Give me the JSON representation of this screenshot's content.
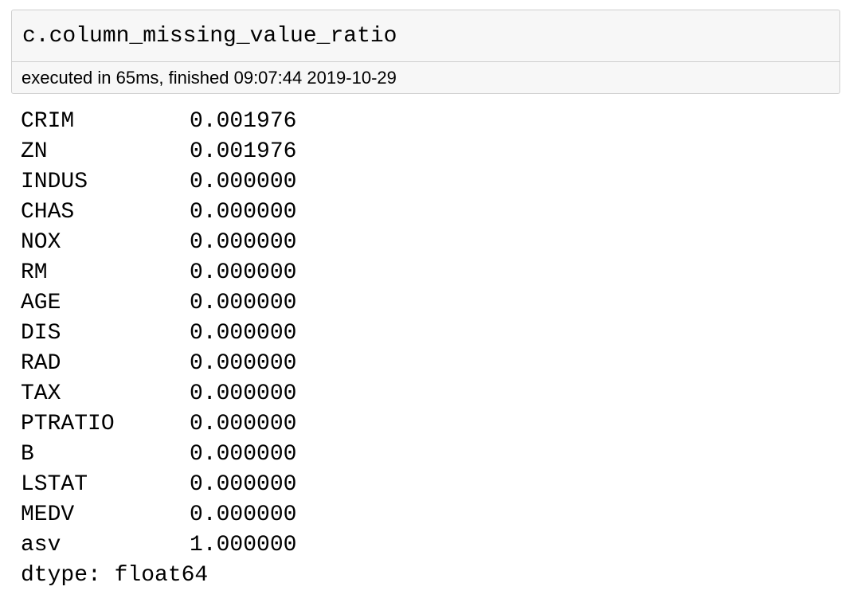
{
  "cell": {
    "code": "c.column_missing_value_ratio",
    "execution_info": "executed in 65ms, finished 09:07:44 2019-10-29"
  },
  "output": {
    "rows": [
      {
        "name": "CRIM",
        "value": "0.001976"
      },
      {
        "name": "ZN",
        "value": "0.001976"
      },
      {
        "name": "INDUS",
        "value": "0.000000"
      },
      {
        "name": "CHAS",
        "value": "0.000000"
      },
      {
        "name": "NOX",
        "value": "0.000000"
      },
      {
        "name": "RM",
        "value": "0.000000"
      },
      {
        "name": "AGE",
        "value": "0.000000"
      },
      {
        "name": "DIS",
        "value": "0.000000"
      },
      {
        "name": "RAD",
        "value": "0.000000"
      },
      {
        "name": "TAX",
        "value": "0.000000"
      },
      {
        "name": "PTRATIO",
        "value": "0.000000"
      },
      {
        "name": "B",
        "value": "0.000000"
      },
      {
        "name": "LSTAT",
        "value": "0.000000"
      },
      {
        "name": "MEDV",
        "value": "0.000000"
      },
      {
        "name": "asv",
        "value": "1.000000"
      }
    ],
    "dtype": "dtype: float64"
  }
}
